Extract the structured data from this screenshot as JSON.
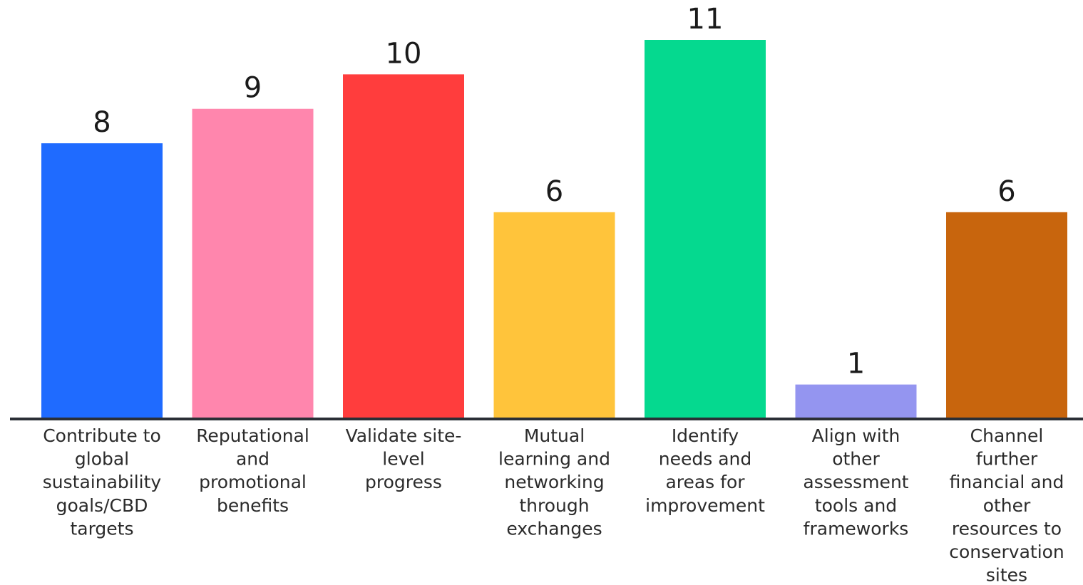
{
  "chart_data": {
    "type": "bar",
    "title": "",
    "xlabel": "",
    "ylabel": "",
    "ylim": [
      0,
      11
    ],
    "grid": false,
    "legend": "none",
    "categories": [
      [
        "Contribute to",
        "global",
        "sustainability",
        "goals/CBD",
        "targets"
      ],
      [
        "Reputational",
        "and",
        "promotional",
        "benefits"
      ],
      [
        "Validate site-",
        "level",
        "progress"
      ],
      [
        "Mutual",
        "learning and",
        "networking",
        "through",
        "exchanges"
      ],
      [
        "Identify",
        "needs and",
        "areas for",
        "improvement"
      ],
      [
        "Align with",
        "other",
        "assessment",
        "tools and",
        "frameworks"
      ],
      [
        "Channel",
        "further",
        "financial and",
        "other",
        "resources to",
        "conservation",
        "sites"
      ]
    ],
    "values": [
      8,
      9,
      10,
      6,
      11,
      1,
      6
    ],
    "colors": [
      "#1f6bff",
      "#ff86ad",
      "#ff3d3d",
      "#ffc43b",
      "#05d98f",
      "#9495f0",
      "#c8650d"
    ],
    "axis_color": "#2b2f36"
  }
}
